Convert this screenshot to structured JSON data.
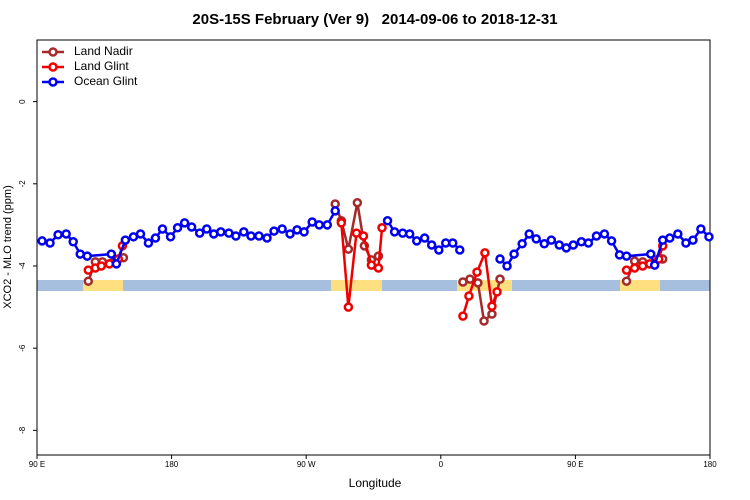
{
  "chart_data": {
    "type": "line",
    "title": "20S-15S February (Ver 9)   2014-09-06 to 2018-12-31",
    "x_label": "Longitude",
    "y_label": "XCO2 - MLO trend (ppm)",
    "xlim": [
      90,
      540
    ],
    "xticks": [
      {
        "value": 90,
        "label": "90 E"
      },
      180,
      {
        "value": 270,
        "label": "90 W"
      },
      {
        "value": 360,
        "label": "0"
      },
      {
        "value": 450,
        "label": "90 E"
      },
      {
        "value": 540,
        "label": "180"
      }
    ],
    "ylim": [
      -8.6,
      1.5
    ],
    "yticks": [
      0,
      -2,
      -4,
      -6,
      -8
    ],
    "legend": "top-left",
    "series": [
      {
        "name": "Land Nadir",
        "color": "#a52a2a",
        "x": [
          124.3,
          129.0,
          133.7,
          147.8,
          null,
          289.4,
          293.5,
          298.2,
          304.2,
          308.9,
          313.6,
          318.3,
          null,
          374.8,
          379.5,
          384.8,
          388.9,
          394.2,
          399.6,
          null,
          484.2,
          489.6,
          495.0,
          508.4
        ],
        "values": [
          -4.37,
          -3.9,
          -3.9,
          -3.8,
          null,
          -2.49,
          -2.9,
          -3.59,
          -2.46,
          -3.51,
          -3.85,
          -3.76,
          null,
          -4.39,
          -4.32,
          -4.41,
          -5.34,
          -5.17,
          -4.32,
          null,
          -4.37,
          -3.88,
          -3.9,
          -3.83
        ]
      },
      {
        "name": "Land Glint",
        "color": "#ee0000",
        "x": [
          124.3,
          129.0,
          133.0,
          138.4,
          144.4,
          147.1,
          null,
          293.5,
          298.2,
          303.6,
          308.3,
          313.6,
          318.3,
          320.7,
          null,
          374.8,
          378.8,
          384.2,
          389.5,
          394.2,
          397.6,
          null,
          484.2,
          489.6,
          495.0,
          499.7,
          505.7,
          508.4
        ],
        "values": [
          -4.1,
          -4.05,
          -4.0,
          -3.95,
          -3.83,
          -3.51,
          null,
          -2.95,
          -5.0,
          -3.2,
          -3.27,
          -3.98,
          -4.05,
          -3.07,
          null,
          -5.22,
          -4.73,
          -4.15,
          -3.68,
          -4.98,
          -4.63,
          null,
          -4.1,
          -4.05,
          -4.0,
          -3.95,
          -3.83,
          -3.51
        ]
      },
      {
        "name": "Ocean Glint",
        "color": "#0000ee",
        "x": [
          93.4,
          98.7,
          104.1,
          109.5,
          114.2,
          118.9,
          123.6,
          139.7,
          143.1,
          149.1,
          154.5,
          159.2,
          164.5,
          169.2,
          173.9,
          179.3,
          184.0,
          188.7,
          193.4,
          198.8,
          203.5,
          208.2,
          212.9,
          218.3,
          223.0,
          228.3,
          233.1,
          238.4,
          243.8,
          248.5,
          253.9,
          259.2,
          263.9,
          268.6,
          274.0,
          278.7,
          284.1,
          289.4,
          null,
          324.4,
          329.1,
          334.5,
          339.2,
          343.9,
          349.2,
          353.9,
          358.7,
          363.3,
          368.0,
          372.7,
          null,
          399.6,
          404.3,
          409.0,
          414.4,
          419.1,
          423.8,
          429.2,
          433.9,
          439.2,
          443.9,
          448.6,
          454.0,
          458.7,
          464.1,
          469.4,
          474.2,
          479.5,
          484.2,
          500.4,
          503.0,
          508.4,
          513.1,
          518.5,
          523.9,
          528.6,
          533.9,
          539.3
        ],
        "values": [
          -3.39,
          -3.44,
          -3.24,
          -3.22,
          -3.41,
          -3.71,
          -3.76,
          -3.71,
          -3.95,
          -3.37,
          -3.29,
          -3.22,
          -3.44,
          -3.32,
          -3.1,
          -3.29,
          -3.07,
          -2.95,
          -3.05,
          -3.2,
          -3.1,
          -3.22,
          -3.17,
          -3.2,
          -3.27,
          -3.17,
          -3.27,
          -3.27,
          -3.32,
          -3.15,
          -3.1,
          -3.22,
          -3.12,
          -3.17,
          -2.93,
          -3.0,
          -3.0,
          -2.66,
          null,
          -2.9,
          -3.17,
          -3.2,
          -3.22,
          -3.39,
          -3.32,
          -3.49,
          -3.61,
          -3.44,
          -3.44,
          -3.61,
          null,
          -3.83,
          -4.0,
          -3.71,
          -3.46,
          -3.22,
          -3.34,
          -3.46,
          -3.37,
          -3.49,
          -3.56,
          -3.49,
          -3.41,
          -3.44,
          -3.27,
          -3.22,
          -3.39,
          -3.73,
          -3.76,
          -3.71,
          -3.98,
          -3.37,
          -3.32,
          -3.22,
          -3.44,
          -3.37,
          -3.1,
          -3.29
        ]
      }
    ]
  }
}
